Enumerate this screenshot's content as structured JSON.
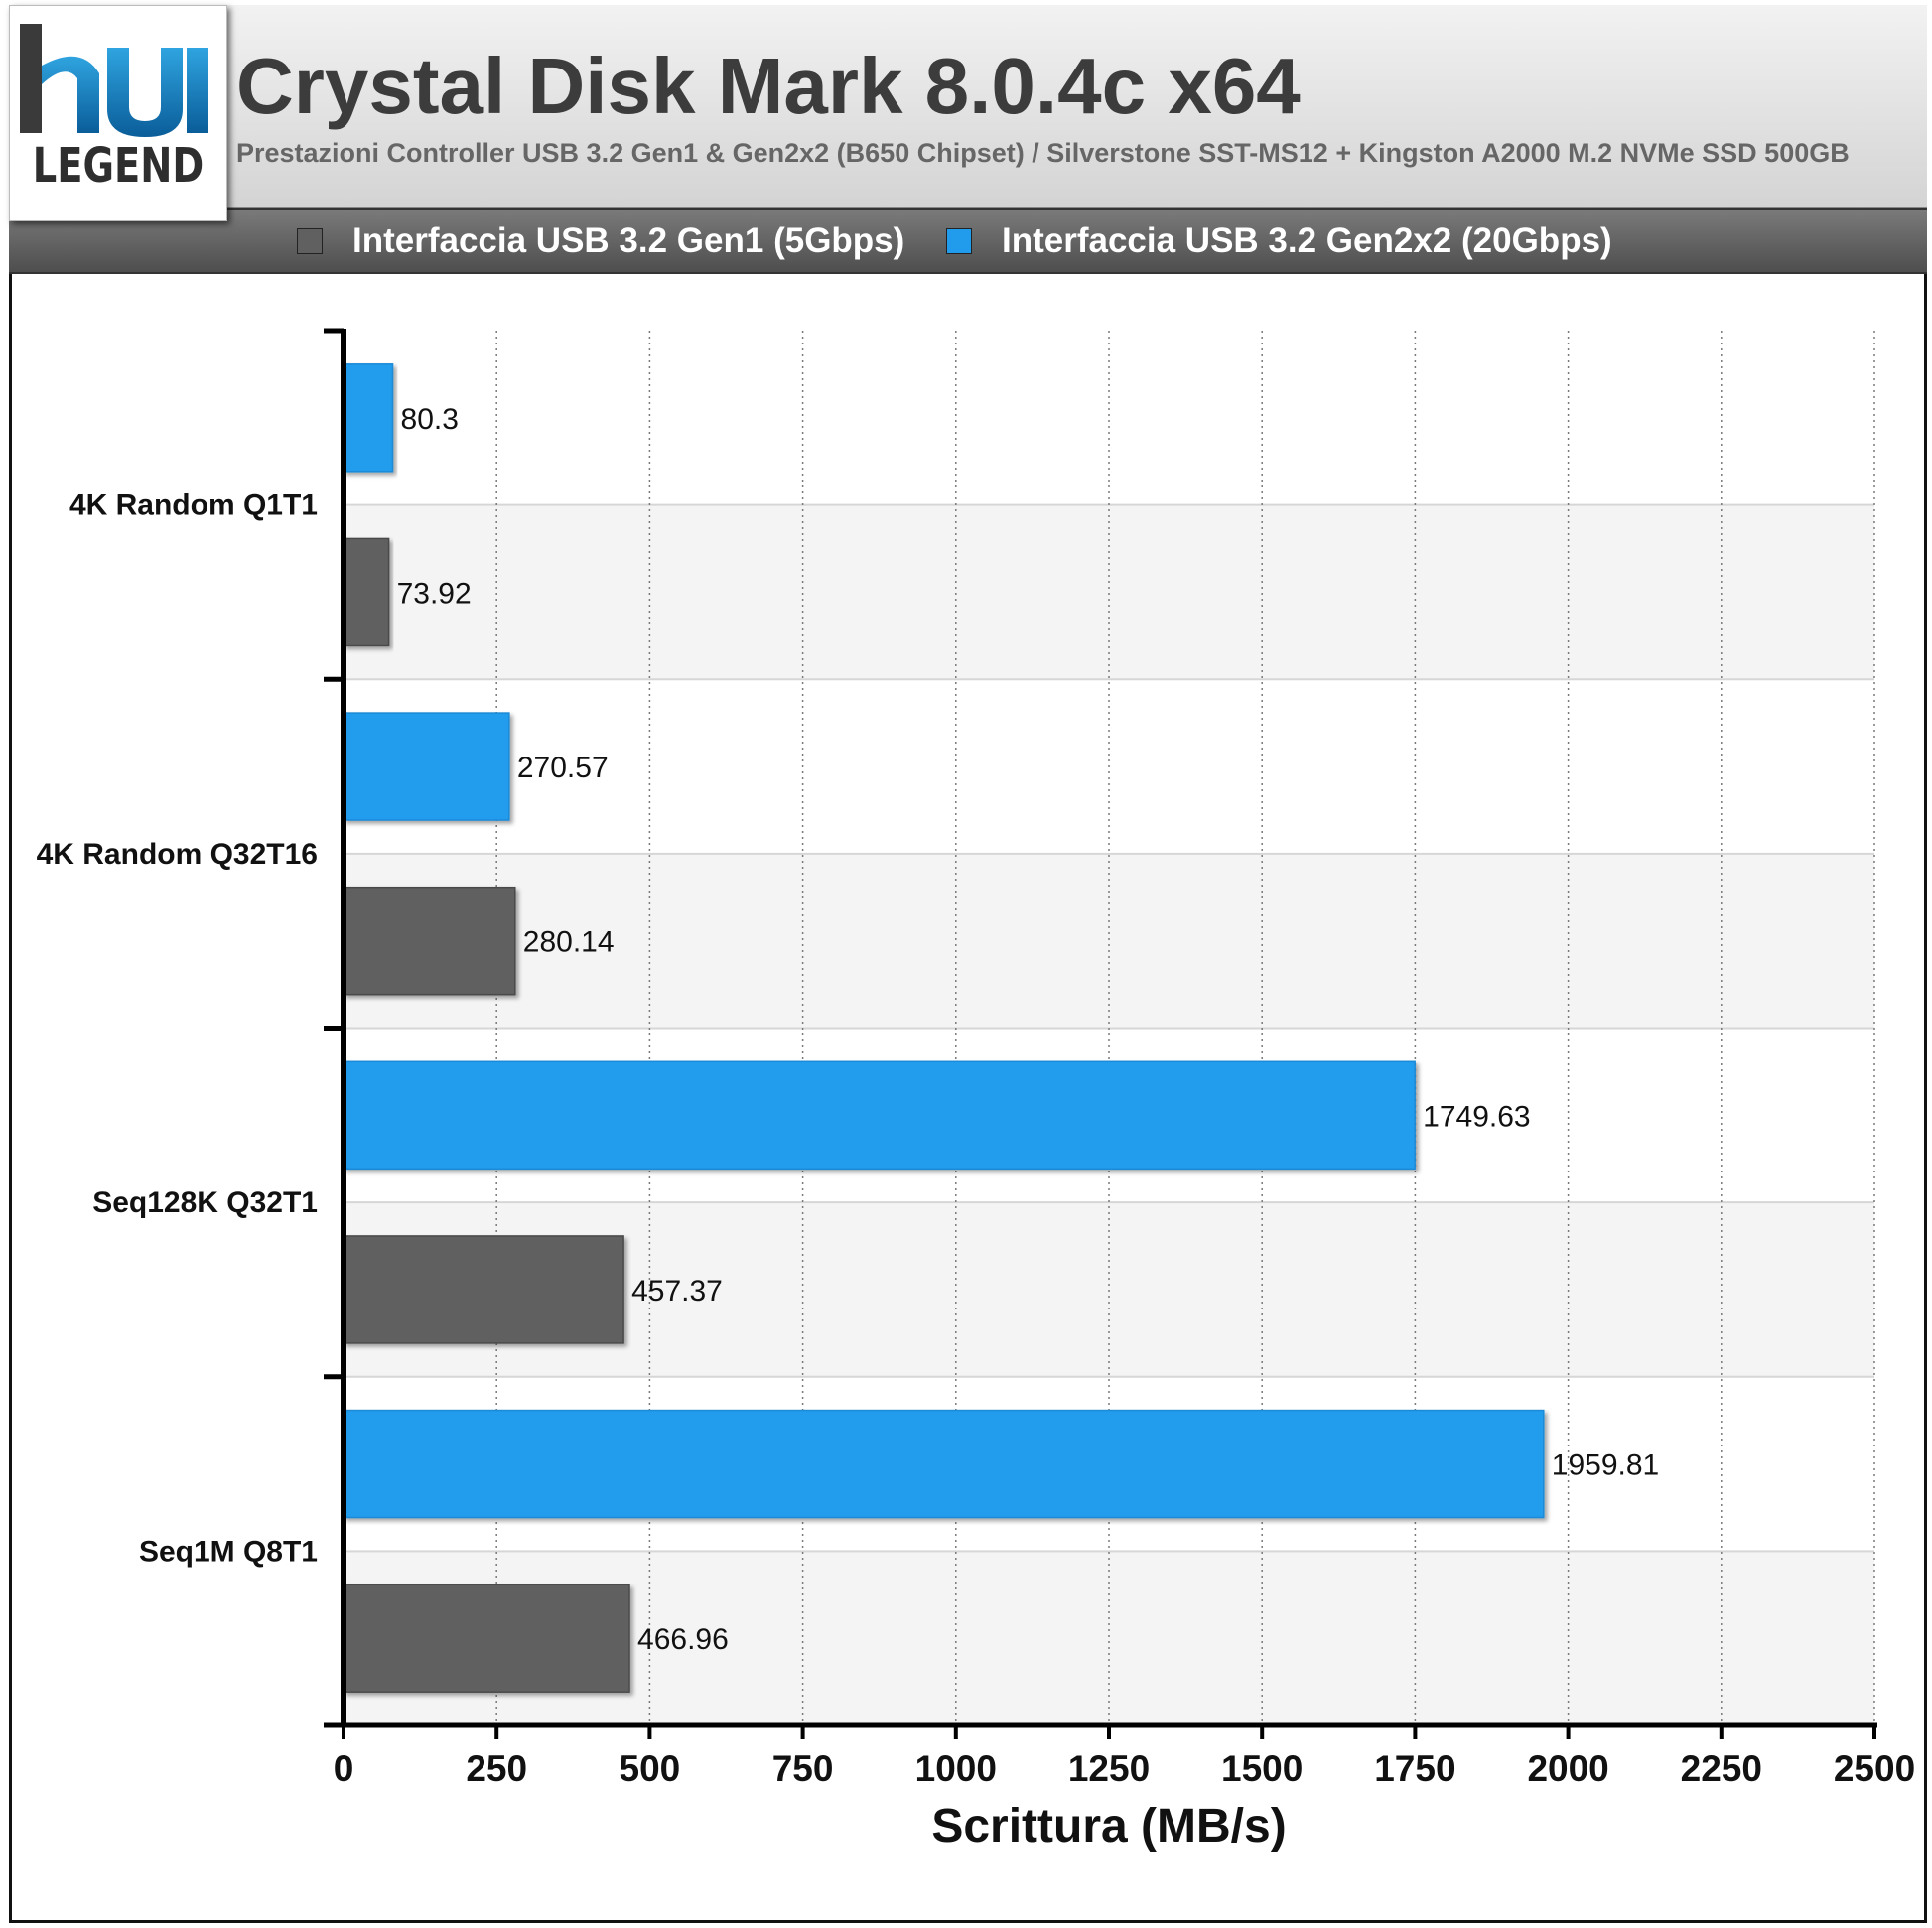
{
  "logo": {
    "text": "LEGEND"
  },
  "chart_data": {
    "type": "bar",
    "orientation": "horizontal",
    "title": "Crystal Disk Mark 8.0.4c x64",
    "subtitle": "Prestazioni Controller USB 3.2 Gen1 & Gen2x2 (B650 Chipset) / Silverstone SST-MS12 + Kingston A2000 M.2 NVMe SSD 500GB",
    "xlabel": "Scrittura (MB/s)",
    "ylabel": "",
    "xlim": [
      0,
      2500
    ],
    "xticks": [
      "0",
      "250",
      "500",
      "750",
      "1000",
      "1250",
      "1500",
      "1750",
      "2000",
      "2250",
      "2500"
    ],
    "categories": [
      "4K Random Q1T1",
      "4K Random Q32T16",
      "Seq128K Q32T1",
      "Seq1M Q8T1"
    ],
    "series": [
      {
        "name": "Interfaccia USB 3.2 Gen2x2 (20Gbps)",
        "color": "#219ced",
        "values": [
          80.3,
          270.57,
          1749.63,
          1959.81
        ],
        "labels": [
          "80.3",
          "270.57",
          "1749.63",
          "1959.81"
        ]
      },
      {
        "name": "Interfaccia USB 3.2 Gen1 (5Gbps)",
        "color": "#606060",
        "values": [
          73.92,
          280.14,
          457.37,
          466.96
        ],
        "labels": [
          "73.92",
          "280.14",
          "457.37",
          "466.96"
        ]
      }
    ],
    "legend_order": [
      "Interfaccia USB 3.2 Gen1 (5Gbps)",
      "Interfaccia USB 3.2 Gen2x2 (20Gbps)"
    ],
    "legend_position": "top",
    "grid": "vertical dotted"
  }
}
